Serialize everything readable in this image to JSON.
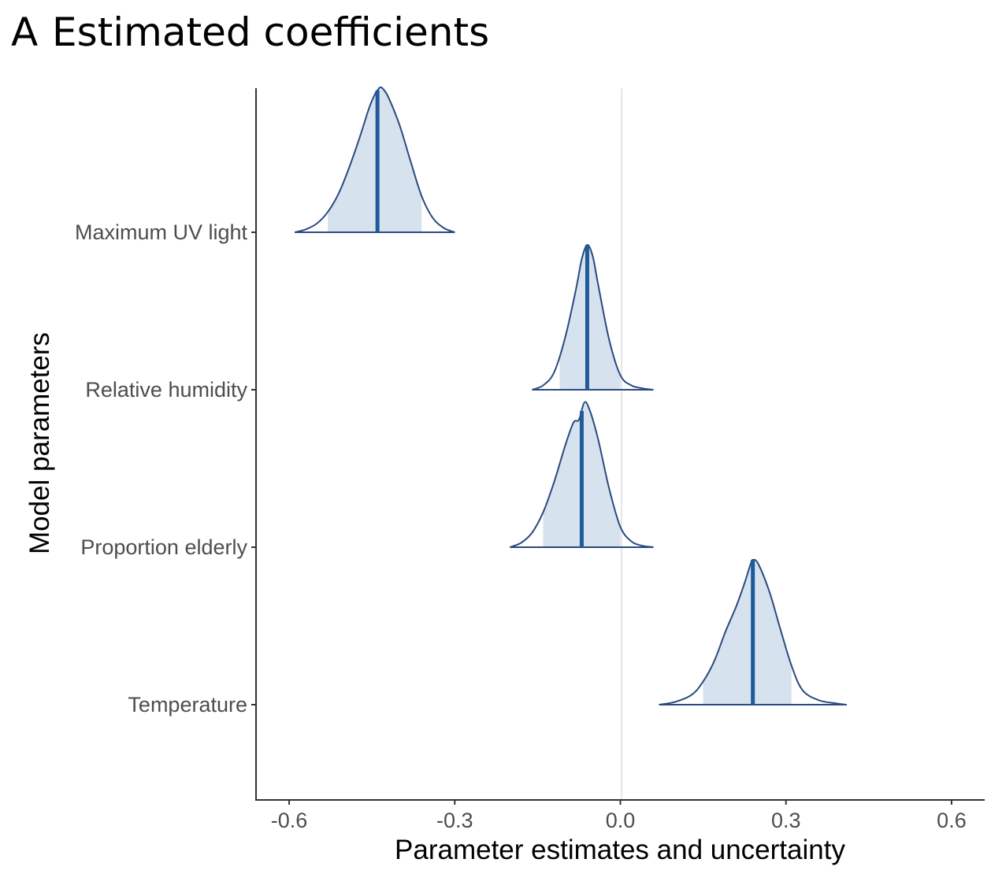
{
  "panel": {
    "letter": "A",
    "title": "Estimated coefficients"
  },
  "chart_data": {
    "type": "area",
    "subtype": "ridgeline-density",
    "title": "Estimated coefficients",
    "xlabel": "Parameter estimates and uncertainty",
    "ylabel": "Model parameters",
    "xlim": [
      -0.66,
      0.66
    ],
    "xticks": [
      -0.6,
      -0.3,
      0.0,
      0.3,
      0.6
    ],
    "xtick_labels": [
      "-0.6",
      "-0.3",
      "0.0",
      "0.3",
      "0.6"
    ],
    "reference_line": 0.0,
    "grid": false,
    "legend": "none",
    "colors": {
      "outline": "#2b4a80",
      "fill": "#d6e2ee",
      "median": "#1f5a9a",
      "reference": "#e6e6e6",
      "axis": "#333333"
    },
    "categories": [
      "Maximum UV light",
      "Relative humidity",
      "Proportion elderly",
      "Temperature"
    ],
    "series": [
      {
        "name": "Maximum UV light",
        "median": -0.44,
        "interval": [
          -0.53,
          -0.36
        ],
        "range": [
          -0.59,
          -0.3
        ],
        "density": [
          [
            -0.59,
            0.0
          ],
          [
            -0.57,
            0.02
          ],
          [
            -0.55,
            0.06
          ],
          [
            -0.53,
            0.14
          ],
          [
            -0.51,
            0.27
          ],
          [
            -0.49,
            0.46
          ],
          [
            -0.47,
            0.68
          ],
          [
            -0.455,
            0.86
          ],
          [
            -0.445,
            0.95
          ],
          [
            -0.44,
            0.98
          ],
          [
            -0.435,
            1.0
          ],
          [
            -0.43,
            0.99
          ],
          [
            -0.42,
            0.93
          ],
          [
            -0.4,
            0.74
          ],
          [
            -0.38,
            0.49
          ],
          [
            -0.36,
            0.25
          ],
          [
            -0.34,
            0.1
          ],
          [
            -0.32,
            0.03
          ],
          [
            -0.3,
            0.0
          ]
        ]
      },
      {
        "name": "Relative humidity",
        "median": -0.06,
        "interval": [
          -0.11,
          0.0
        ],
        "range": [
          -0.16,
          0.06
        ],
        "density": [
          [
            -0.16,
            0.0
          ],
          [
            -0.14,
            0.03
          ],
          [
            -0.12,
            0.12
          ],
          [
            -0.1,
            0.36
          ],
          [
            -0.08,
            0.7
          ],
          [
            -0.07,
            0.9
          ],
          [
            -0.06,
            1.0
          ],
          [
            -0.05,
            0.92
          ],
          [
            -0.04,
            0.72
          ],
          [
            -0.02,
            0.34
          ],
          [
            0.0,
            0.1
          ],
          [
            0.02,
            0.03
          ],
          [
            0.04,
            0.01
          ],
          [
            0.06,
            0.0
          ]
        ]
      },
      {
        "name": "Proportion elderly",
        "median": -0.07,
        "interval": [
          -0.14,
          0.0
        ],
        "range": [
          -0.2,
          0.06
        ],
        "density": [
          [
            -0.2,
            0.0
          ],
          [
            -0.18,
            0.03
          ],
          [
            -0.16,
            0.1
          ],
          [
            -0.14,
            0.24
          ],
          [
            -0.12,
            0.45
          ],
          [
            -0.1,
            0.7
          ],
          [
            -0.085,
            0.86
          ],
          [
            -0.075,
            0.88
          ],
          [
            -0.065,
            1.0
          ],
          [
            -0.055,
            0.94
          ],
          [
            -0.04,
            0.74
          ],
          [
            -0.02,
            0.4
          ],
          [
            0.0,
            0.14
          ],
          [
            0.02,
            0.04
          ],
          [
            0.04,
            0.01
          ],
          [
            0.06,
            0.0
          ]
        ]
      },
      {
        "name": "Temperature",
        "median": 0.24,
        "interval": [
          0.15,
          0.31
        ],
        "range": [
          0.07,
          0.41
        ],
        "density": [
          [
            0.07,
            0.0
          ],
          [
            0.1,
            0.02
          ],
          [
            0.13,
            0.07
          ],
          [
            0.15,
            0.16
          ],
          [
            0.17,
            0.3
          ],
          [
            0.19,
            0.5
          ],
          [
            0.21,
            0.68
          ],
          [
            0.225,
            0.84
          ],
          [
            0.235,
            0.96
          ],
          [
            0.24,
            1.0
          ],
          [
            0.25,
            0.97
          ],
          [
            0.27,
            0.78
          ],
          [
            0.29,
            0.52
          ],
          [
            0.31,
            0.27
          ],
          [
            0.33,
            0.1
          ],
          [
            0.36,
            0.03
          ],
          [
            0.39,
            0.01
          ],
          [
            0.41,
            0.0
          ]
        ]
      }
    ]
  }
}
